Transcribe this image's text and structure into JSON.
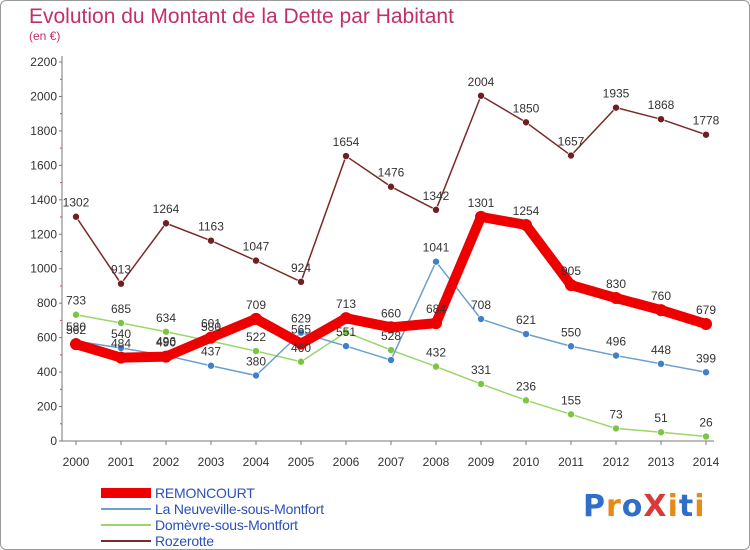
{
  "title": "Evolution du Montant de la Dette par Habitant",
  "subtitle": "(en €)",
  "logo": {
    "text": "ProXiti",
    "colors": [
      "#2f6fc9",
      "#e88a1a",
      "#2f6fc9",
      "#d83a3a",
      "#e88a1a",
      "#2f6fc9",
      "#e88a1a"
    ]
  },
  "chart_data": {
    "type": "line",
    "title": "Evolution du Montant de la Dette par Habitant",
    "subtitle": "(en €)",
    "xlabel": "",
    "ylabel": "",
    "ylim": [
      0,
      2200
    ],
    "yticks": [
      "0",
      "200",
      "400",
      "600",
      "800",
      "1000",
      "1200",
      "1400",
      "1600",
      "1800",
      "2000",
      "2200"
    ],
    "x": [
      "2000",
      "2001",
      "2002",
      "2003",
      "2004",
      "2005",
      "2006",
      "2007",
      "2008",
      "2009",
      "2010",
      "2011",
      "2012",
      "2013",
      "2014"
    ],
    "grid": false,
    "legend_position": "bottom-left",
    "series": [
      {
        "name": "REMONCOURT",
        "color": "#ee0000",
        "width": 10,
        "marker_color": "#ee0000",
        "marker_r": 6,
        "values": [
          562,
          484,
          490,
          601,
          709,
          565,
          713,
          660,
          684,
          1301,
          1254,
          905,
          830,
          760,
          679
        ],
        "labels": [
          "562",
          "484",
          "490",
          "601",
          "709",
          "565",
          "713",
          "660",
          "684",
          "1301",
          "1254",
          "905",
          "830",
          "760",
          "679"
        ]
      },
      {
        "name": "La Neuveville-sous-Montfort",
        "color": "#6a9fd0",
        "width": 1.5,
        "marker_color": "#3f80c8",
        "marker_r": 3.5,
        "values": [
          580,
          540,
          496,
          437,
          380,
          629,
          551,
          470,
          1041,
          708,
          621,
          550,
          496,
          448,
          399
        ],
        "labels": [
          "580",
          "540",
          "496",
          "437",
          "380",
          "629",
          "551",
          "",
          "1041",
          "708",
          "621",
          "550",
          "496",
          "448",
          "399"
        ]
      },
      {
        "name": "Domèvre-sous-Montfort",
        "color": "#9ad66a",
        "width": 1.5,
        "marker_color": "#7cc544",
        "marker_r": 3.5,
        "values": [
          733,
          685,
          634,
          580,
          522,
          460,
          631,
          528,
          432,
          331,
          236,
          155,
          73,
          51,
          26
        ],
        "labels": [
          "733",
          "685",
          "634",
          "580",
          "522",
          "460",
          "",
          "528",
          "432",
          "331",
          "236",
          "155",
          "73",
          "51",
          "26"
        ]
      },
      {
        "name": "Rozerotte",
        "color": "#7a2a2a",
        "width": 1.5,
        "marker_color": "#6e1f1f",
        "marker_r": 3.5,
        "values": [
          1302,
          913,
          1264,
          1163,
          1047,
          924,
          1654,
          1476,
          1342,
          2004,
          1850,
          1657,
          1935,
          1868,
          1778
        ],
        "labels": [
          "1302",
          "913",
          "1264",
          "1163",
          "1047",
          "924",
          "1654",
          "1476",
          "1342",
          "2004",
          "1850",
          "1657",
          "1935",
          "1868",
          "1778"
        ]
      }
    ]
  }
}
